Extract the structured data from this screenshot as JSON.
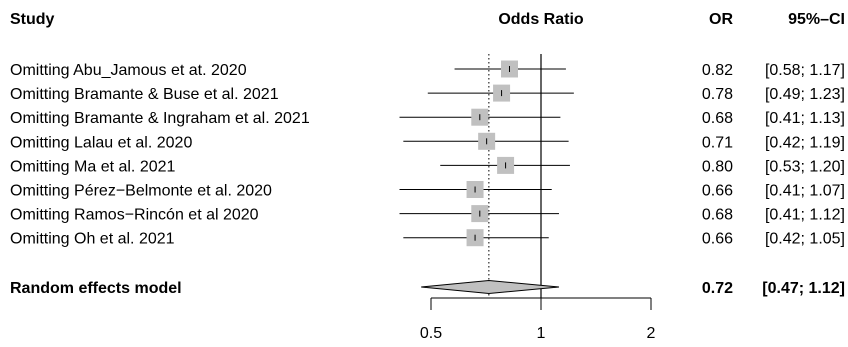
{
  "headers": {
    "study": "Study",
    "effect": "Odds Ratio",
    "or": "OR",
    "ci": "95%–CI"
  },
  "chart_data": {
    "type": "forest",
    "xscale": "log",
    "xlim": [
      0.5,
      2
    ],
    "reference_line": 1,
    "pooled_line": 0.72,
    "x_ticks": [
      {
        "value": 0.5,
        "label": "0.5"
      },
      {
        "value": 1,
        "label": "1"
      },
      {
        "value": 2,
        "label": "2"
      }
    ],
    "studies": [
      {
        "label": "Omitting Abu_Jamous et at. 2020",
        "or": 0.82,
        "lo": 0.58,
        "hi": 1.17,
        "or_text": "0.82",
        "ci_text": "[0.58; 1.17]"
      },
      {
        "label": "Omitting Bramante & Buse et al. 2021",
        "or": 0.78,
        "lo": 0.49,
        "hi": 1.23,
        "or_text": "0.78",
        "ci_text": "[0.49; 1.23]"
      },
      {
        "label": "Omitting Bramante & Ingraham et al. 2021",
        "or": 0.68,
        "lo": 0.41,
        "hi": 1.13,
        "or_text": "0.68",
        "ci_text": "[0.41; 1.13]"
      },
      {
        "label": "Omitting Lalau et al. 2020",
        "or": 0.71,
        "lo": 0.42,
        "hi": 1.19,
        "or_text": "0.71",
        "ci_text": "[0.42; 1.19]"
      },
      {
        "label": "Omitting Ma et al. 2021",
        "or": 0.8,
        "lo": 0.53,
        "hi": 1.2,
        "or_text": "0.80",
        "ci_text": "[0.53; 1.20]"
      },
      {
        "label": "Omitting Pérez−Belmonte et al. 2020",
        "or": 0.66,
        "lo": 0.41,
        "hi": 1.07,
        "or_text": "0.66",
        "ci_text": "[0.41; 1.07]"
      },
      {
        "label": "Omitting Ramos−Rincón et al 2020",
        "or": 0.68,
        "lo": 0.41,
        "hi": 1.12,
        "or_text": "0.68",
        "ci_text": "[0.41; 1.12]"
      },
      {
        "label": "Omitting Oh et al. 2021",
        "or": 0.66,
        "lo": 0.42,
        "hi": 1.05,
        "or_text": "0.66",
        "ci_text": "[0.42; 1.05]"
      }
    ],
    "summary": {
      "label": "Random effects model",
      "or": 0.72,
      "lo": 0.47,
      "hi": 1.12,
      "or_text": "0.72",
      "ci_text": "[0.47; 1.12]"
    },
    "colors": {
      "square": "#c0c0c0",
      "diamond": "#c0c0c0",
      "line": "#000000"
    }
  }
}
